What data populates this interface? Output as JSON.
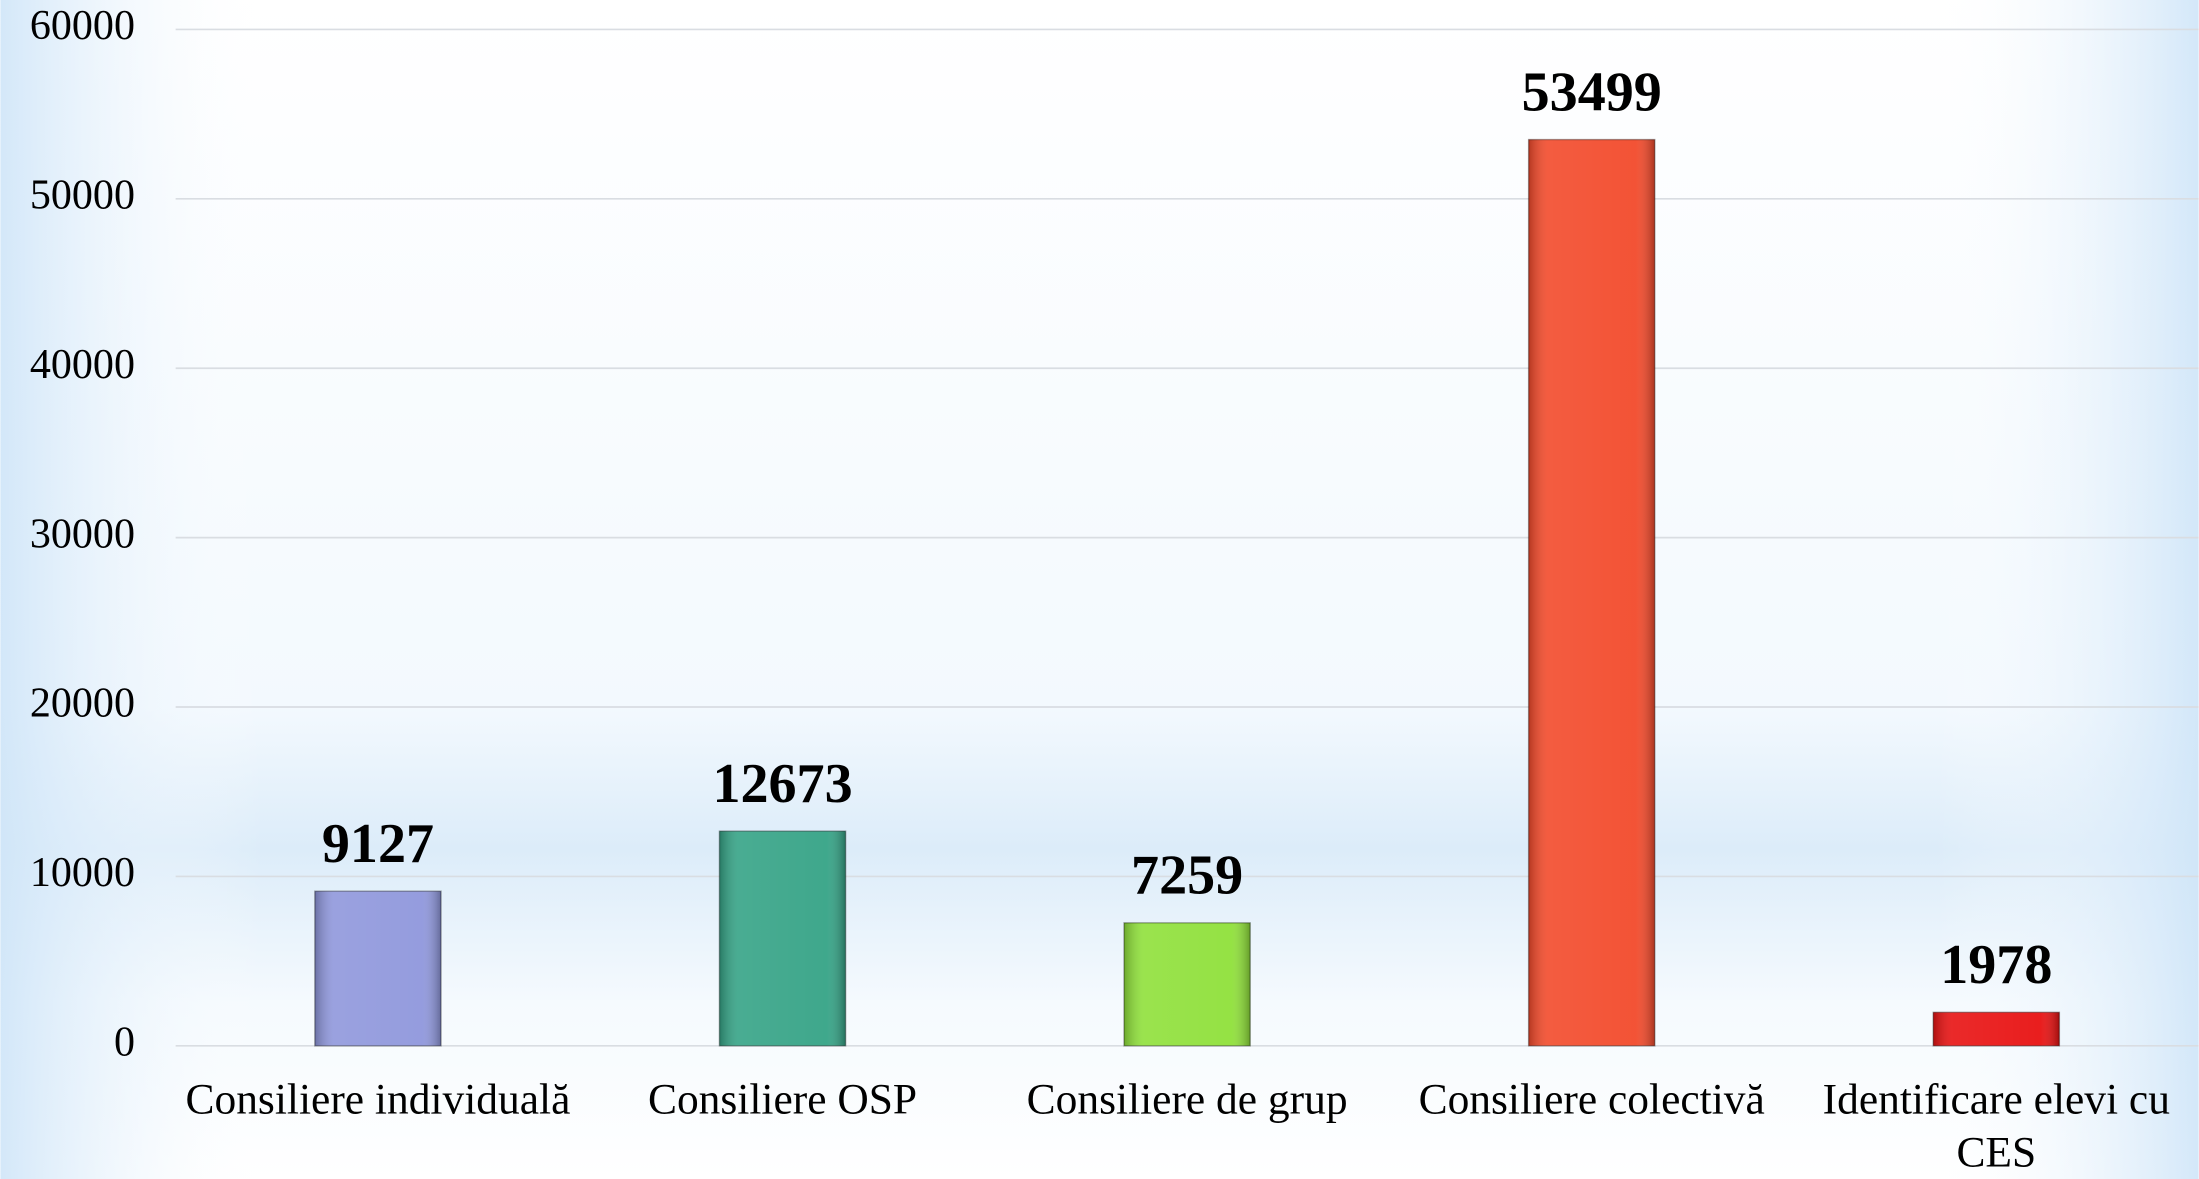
{
  "chart_data": {
    "type": "bar",
    "categories": [
      "Consiliere individuală",
      "Consiliere OSP",
      "Consiliere de grup",
      "Consiliere colectivă",
      "Identificare elevi cu CES"
    ],
    "values": [
      9127,
      12673,
      7259,
      53499,
      1978
    ],
    "colors": [
      "#8f97dc",
      "#35a386",
      "#8fe03a",
      "#f24a2b",
      "#e81212"
    ],
    "ylim": [
      0,
      60000
    ],
    "yticks": [
      0,
      10000,
      20000,
      30000,
      40000,
      50000,
      60000
    ],
    "grid": true
  }
}
